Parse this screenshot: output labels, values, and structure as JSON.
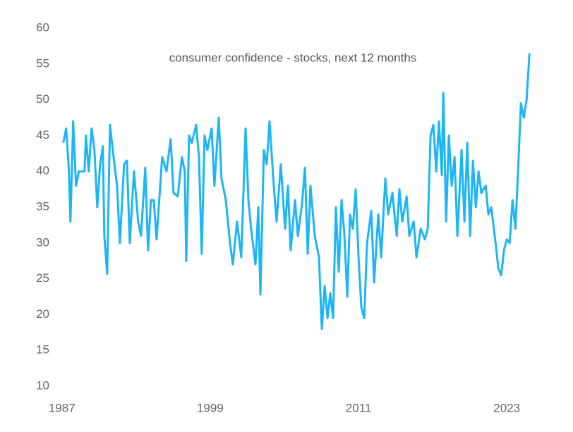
{
  "chart_data": {
    "type": "line",
    "title": "consumer confidence - stocks, next 12 months",
    "x": [
      1987.11,
      1987.34,
      1987.57,
      1987.69,
      1987.91,
      1988.14,
      1988.37,
      1988.83,
      1988.94,
      1989.17,
      1989.4,
      1989.63,
      1989.86,
      1990.09,
      1990.31,
      1990.43,
      1990.66,
      1990.89,
      1991.11,
      1991.46,
      1991.69,
      1992.03,
      1992.26,
      1992.49,
      1992.83,
      1993.17,
      1993.4,
      1993.74,
      1993.97,
      1994.2,
      1994.43,
      1994.66,
      1995.11,
      1995.46,
      1995.8,
      1996.03,
      1996.37,
      1996.71,
      1996.94,
      1997.06,
      1997.29,
      1997.51,
      1997.86,
      1998.09,
      1998.31,
      1998.54,
      1998.77,
      1999.11,
      1999.34,
      1999.69,
      1999.91,
      2000.26,
      2000.6,
      2000.83,
      2001.17,
      2001.51,
      2001.86,
      2002.09,
      2002.31,
      2002.66,
      2002.89,
      2003.06,
      2003.34,
      2003.57,
      2003.8,
      2004.14,
      2004.37,
      2004.71,
      2005.06,
      2005.29,
      2005.51,
      2005.86,
      2006.09,
      2006.43,
      2006.66,
      2006.89,
      2007.11,
      2007.46,
      2007.8,
      2008.03,
      2008.26,
      2008.49,
      2008.71,
      2008.94,
      2009.17,
      2009.4,
      2009.63,
      2009.86,
      2010.09,
      2010.31,
      2010.54,
      2010.77,
      2011.0,
      2011.23,
      2011.46,
      2011.69,
      2012.03,
      2012.26,
      2012.6,
      2012.83,
      2013.17,
      2013.4,
      2013.74,
      2014.09,
      2014.31,
      2014.54,
      2014.89,
      2015.11,
      2015.46,
      2015.69,
      2016.03,
      2016.37,
      2016.6,
      2016.83,
      2017.06,
      2017.29,
      2017.51,
      2017.74,
      2017.86,
      2018.09,
      2018.31,
      2018.54,
      2018.77,
      2019.0,
      2019.34,
      2019.57,
      2019.8,
      2020.03,
      2020.26,
      2020.49,
      2020.71,
      2020.94,
      2021.29,
      2021.51,
      2021.74,
      2022.09,
      2022.31,
      2022.54,
      2022.77,
      2023.0,
      2023.23,
      2023.46,
      2023.69,
      2023.91,
      2024.14,
      2024.37,
      2024.6,
      2024.83
    ],
    "series": [
      {
        "color": "#1cb5f6",
        "values": [
          44,
          46,
          40,
          33,
          47,
          38,
          40,
          40,
          45,
          40,
          46,
          43,
          35,
          41,
          43.5,
          31,
          25.7,
          46.5,
          43,
          38,
          30,
          41,
          41.5,
          30,
          40,
          33,
          31,
          40.5,
          29,
          36,
          36,
          30.5,
          42,
          40,
          44.5,
          37,
          36.5,
          42,
          40,
          27.5,
          45,
          44,
          46.5,
          42,
          28.5,
          45,
          43,
          46,
          38,
          47.5,
          39,
          36,
          30,
          27,
          33,
          28,
          46,
          36,
          32,
          27,
          35,
          22.8,
          43,
          41,
          47,
          38,
          33,
          41,
          32,
          38,
          29,
          36,
          31,
          35.5,
          40.5,
          28.5,
          38,
          31,
          28,
          18,
          24,
          19.5,
          23,
          19.5,
          35,
          26,
          36,
          31,
          22.5,
          34,
          32,
          37.5,
          28,
          21,
          19.5,
          30,
          34.5,
          24.5,
          34,
          28,
          39,
          34,
          37,
          31,
          37.5,
          33,
          36.5,
          31,
          33,
          28,
          32,
          30.5,
          32,
          45,
          46.5,
          40,
          47,
          39.5,
          51,
          33,
          45,
          38,
          42,
          31,
          43,
          33,
          44,
          31,
          41.5,
          35,
          40,
          37,
          38,
          34,
          35,
          30,
          26.5,
          25.5,
          29,
          30.5,
          30,
          36,
          32,
          40,
          49.5,
          47.5,
          50,
          56.5
        ]
      }
    ],
    "xlim": [
      1986.5,
      2025.5
    ],
    "xticks": [
      1987,
      1999,
      2011,
      2023
    ],
    "ylim": [
      10,
      60
    ],
    "yticks": [
      10,
      15,
      20,
      25,
      30,
      35,
      40,
      45,
      50,
      55,
      60
    ]
  }
}
